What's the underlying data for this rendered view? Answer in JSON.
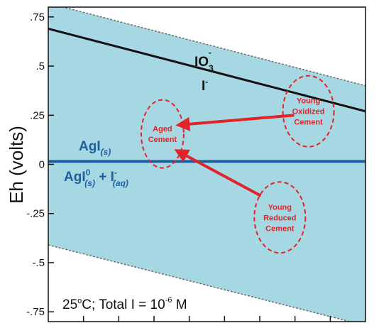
{
  "colors": {
    "band": "#a6d8e3",
    "band_edge": "#6e6e6e",
    "iodate_line": "#111111",
    "agi_line": "#1f5fa0",
    "annotation": "#e2232a",
    "axis": "#111111"
  },
  "chart_data": {
    "type": "line",
    "xlabel": "",
    "ylabel": "Eh (volts)",
    "xlim": [
      0,
      10
    ],
    "ylim": [
      -0.8,
      0.8
    ],
    "x_tick_count": 8,
    "y_ticks": [
      0.75,
      0.5,
      0.25,
      0,
      -0.25,
      -0.5,
      -0.75
    ],
    "y_tick_labels": [
      ".75",
      ".5",
      ".25",
      "0",
      "-.25",
      "-.5",
      "-.75"
    ],
    "water_stability_band": {
      "upper": [
        [
          0,
          0.82
        ],
        [
          10,
          0.4
        ]
      ],
      "lower": [
        [
          0,
          -0.41
        ],
        [
          10,
          -0.82
        ]
      ]
    },
    "series": [
      {
        "values": [
          [
            0,
            0.69
          ],
          [
            10,
            0.27
          ]
        ],
        "color": "iodate_line"
      },
      {
        "values": [
          [
            0,
            0.015
          ],
          [
            10,
            0.015
          ]
        ],
        "color": "agi_line"
      }
    ],
    "species": {
      "iodate": {
        "base": "IO",
        "sub": "3",
        "sup": "-"
      },
      "iodide": {
        "base": "I",
        "sup": "-"
      },
      "agi_solid": {
        "base": "AgI",
        "sub": "(s)"
      },
      "agi_reduced": {
        "base": "AgI",
        "sup": "0",
        "sub": "(s)",
        "plus": " + I",
        "sup2": "-",
        "sub2": "(aq)"
      }
    },
    "regions": [
      {
        "lines": [
          "Aged",
          "Cement"
        ],
        "center": [
          3.6,
          0.155
        ]
      },
      {
        "lines": [
          "Young",
          "Oxidized",
          "Cement"
        ],
        "center": [
          8.2,
          0.27
        ]
      },
      {
        "lines": [
          "Young",
          "Reduced",
          "Cement"
        ],
        "center": [
          7.3,
          -0.27
        ]
      }
    ],
    "arrows": [
      {
        "from": [
          7.75,
          0.25
        ],
        "to": [
          4.1,
          0.2
        ]
      },
      {
        "from": [
          6.7,
          -0.16
        ],
        "to": [
          4.05,
          0.07
        ]
      }
    ],
    "annotation": {
      "prefix": "25",
      "degree": "o",
      "middle": "C; Total I = 10",
      "exponent": "-6",
      "suffix": " M"
    }
  }
}
